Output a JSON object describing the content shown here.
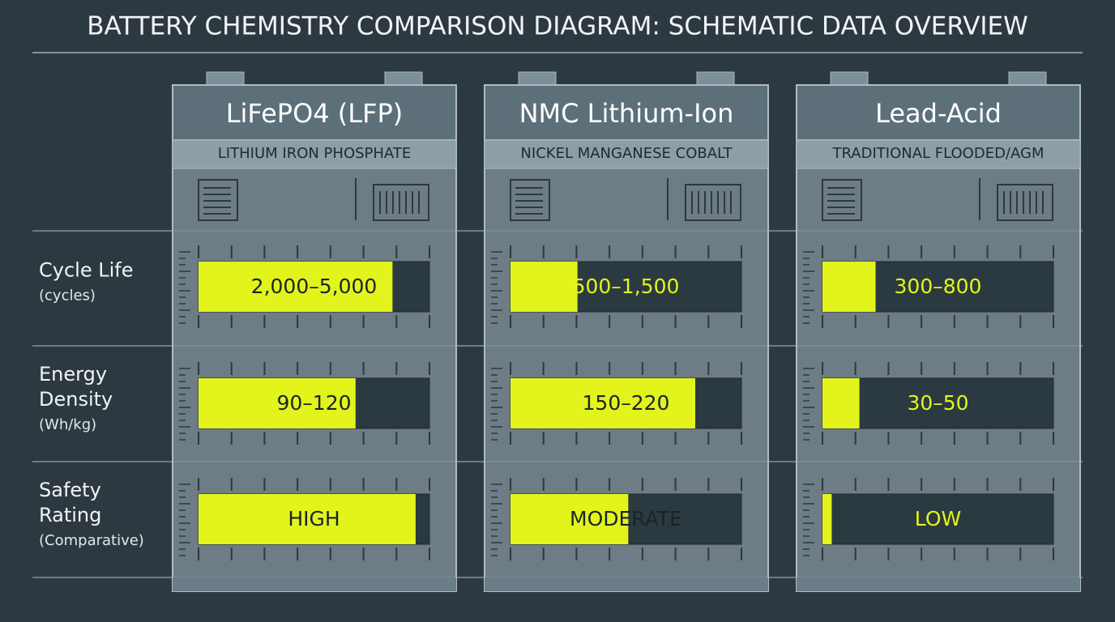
{
  "title": "BATTERY CHEMISTRY COMPARISON DIAGRAM: SCHEMATIC DATA OVERVIEW",
  "rows": [
    {
      "label": [
        "Cycle Life"
      ],
      "unit": "(cycles)"
    },
    {
      "label": [
        "Energy",
        "Density"
      ],
      "unit": "(Wh/kg)"
    },
    {
      "label": [
        "Safety",
        "Rating"
      ],
      "unit": "(Comparative)"
    }
  ],
  "columns": [
    {
      "name": "LiFePO4 (LFP)",
      "subtitle": "LITHIUM IRON PHOSPHATE",
      "cells": [
        {
          "text": "2,000–5,000",
          "fill": 84
        },
        {
          "text": "90–120",
          "fill": 68
        },
        {
          "text": "HIGH",
          "fill": 94
        }
      ]
    },
    {
      "name": "NMC Lithium-Ion",
      "subtitle": "NICKEL MANGANESE COBALT",
      "cells": [
        {
          "text": "500–1,500",
          "fill": 29
        },
        {
          "text": "150–220",
          "fill": 80
        },
        {
          "text": "MODERATE",
          "fill": 51
        }
      ]
    },
    {
      "name": "Lead-Acid",
      "subtitle": "TRADITIONAL FLOODED/AGM",
      "cells": [
        {
          "text": "300–800",
          "fill": 23
        },
        {
          "text": "30–50",
          "fill": 16
        },
        {
          "text": "LOW",
          "fill": 4
        }
      ]
    }
  ]
}
